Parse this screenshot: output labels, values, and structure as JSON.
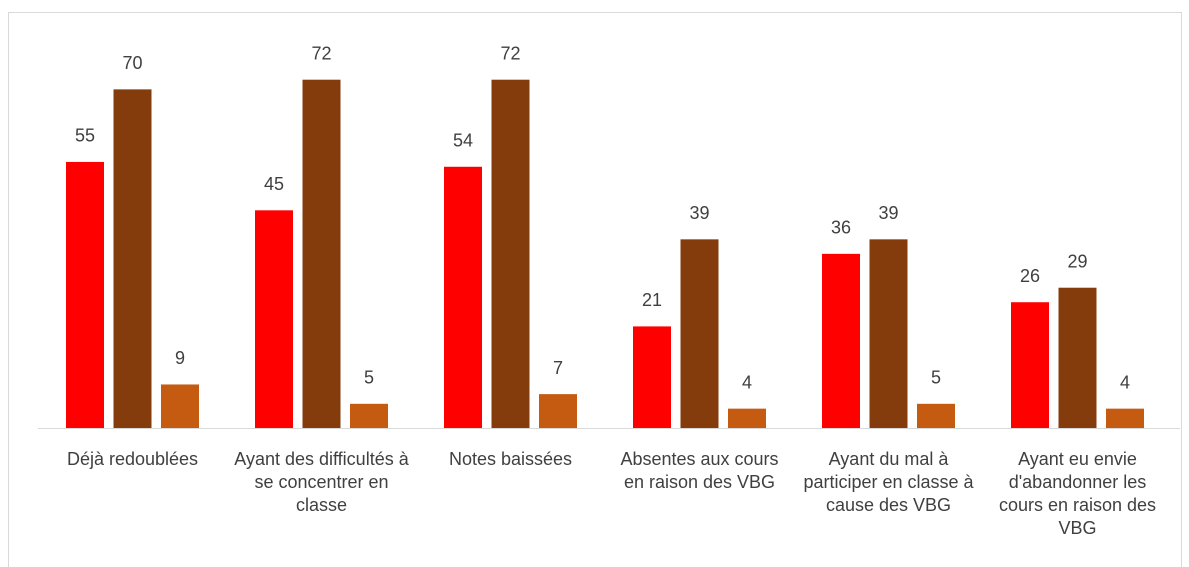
{
  "chart_data": {
    "type": "bar",
    "categories": [
      "Déjà redoublées",
      "Ayant des difficultés à se concentrer en classe",
      "Notes baissées",
      "Absentes aux cours en raison des VBG",
      "Ayant du mal à participer en classe à cause des VBG",
      "Ayant eu envie d'abandonner les cours en raison des VBG"
    ],
    "series": [
      {
        "color": "#ff0000",
        "values": [
          55,
          45,
          54,
          21,
          36,
          26
        ]
      },
      {
        "color": "#843c0c",
        "values": [
          70,
          72,
          72,
          39,
          39,
          29
        ]
      },
      {
        "color": "#c55a11",
        "values": [
          9,
          5,
          7,
          4,
          5,
          4
        ]
      }
    ],
    "ylim": [
      0,
      80
    ]
  }
}
